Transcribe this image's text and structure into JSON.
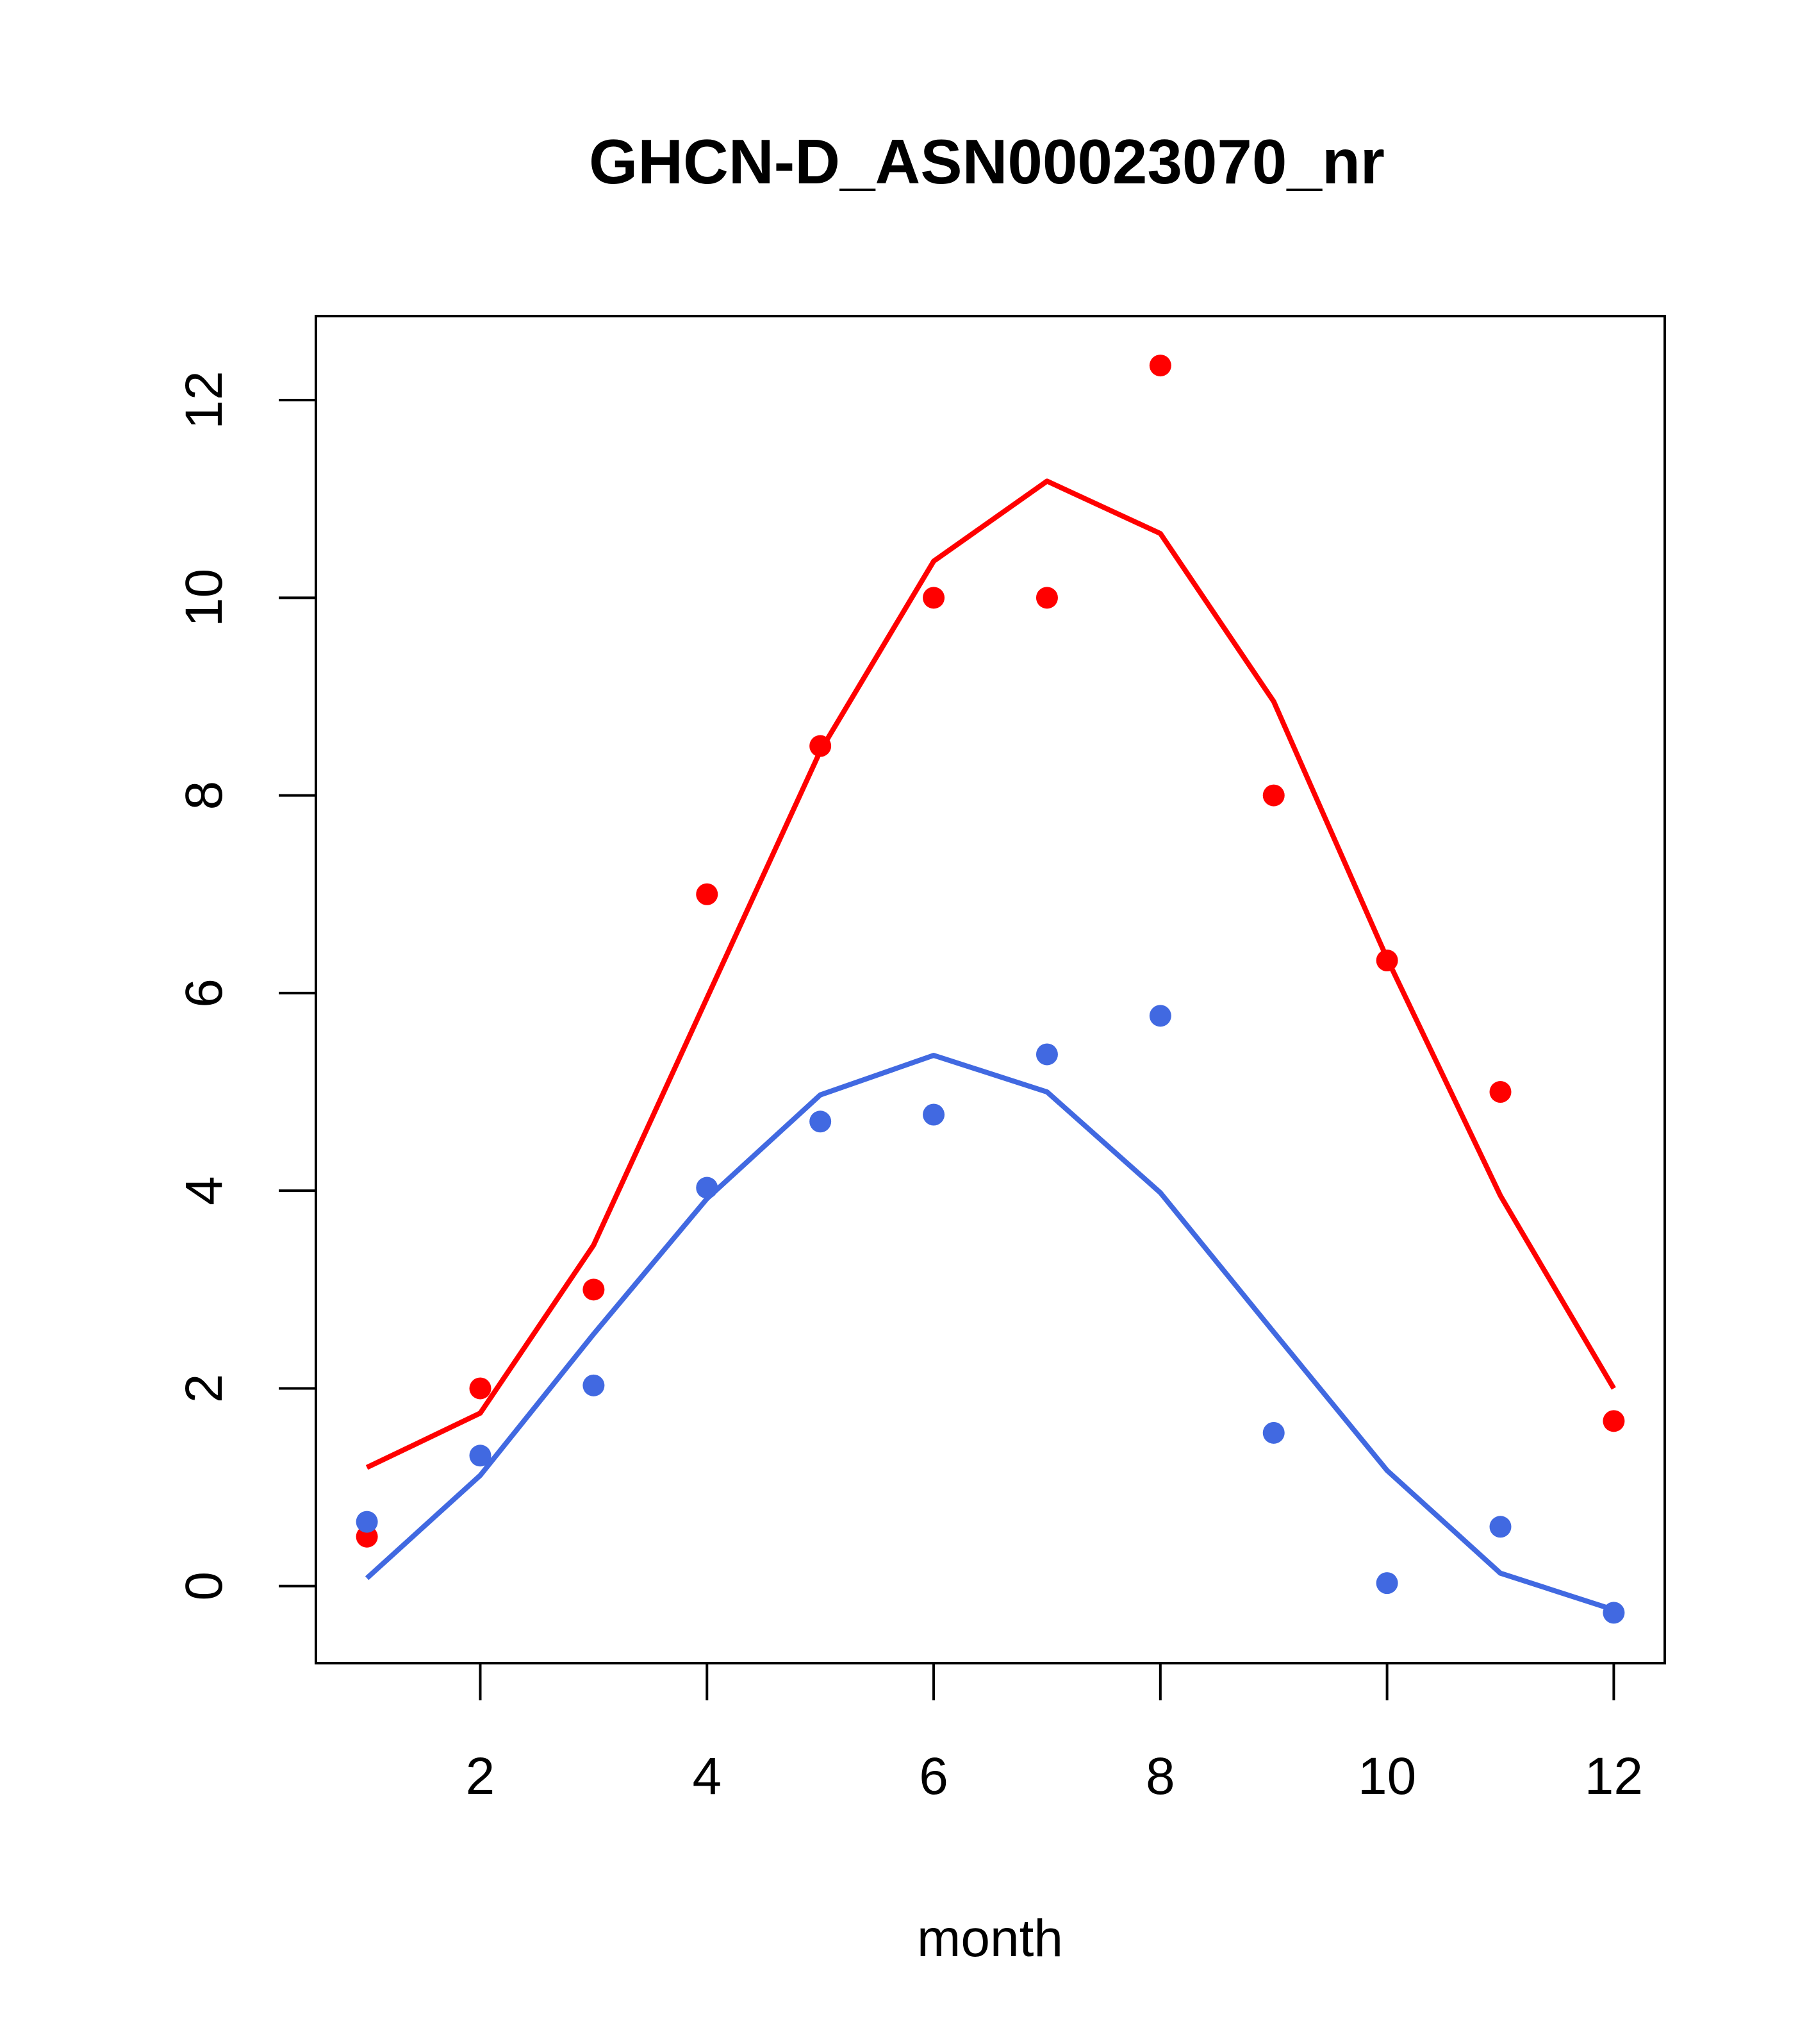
{
  "chart_data": {
    "type": "line",
    "title": "GHCN-D_ASN00023070_nr",
    "xlabel": "month",
    "ylabel": "",
    "xlim": [
      0.55,
      12.45
    ],
    "ylim": [
      -0.78,
      12.85
    ],
    "xticks": [
      2,
      4,
      6,
      8,
      10,
      12
    ],
    "xtick_labels": [
      "2",
      "4",
      "6",
      "8",
      "10",
      "12"
    ],
    "yticks": [
      0,
      2,
      4,
      6,
      8,
      10,
      12
    ],
    "ytick_labels": [
      "0",
      "2",
      "4",
      "6",
      "8",
      "10",
      "12"
    ],
    "grid": false,
    "legend": "none",
    "x": [
      1,
      2,
      3,
      4,
      5,
      6,
      7,
      8,
      9,
      10,
      11,
      12
    ],
    "series": [
      {
        "color": "#ff0000",
        "points": [
          0.5,
          2.0,
          3.0,
          7.0,
          8.5,
          10.0,
          10.0,
          12.35,
          8.0,
          6.33,
          5.0,
          1.67
        ],
        "line": [
          1.2,
          1.75,
          3.45,
          5.95,
          8.45,
          10.37,
          11.18,
          10.65,
          8.95,
          6.35,
          3.95,
          2.0
        ]
      },
      {
        "color": "#4169e1",
        "points": [
          0.65,
          1.32,
          2.03,
          4.03,
          4.7,
          4.77,
          5.38,
          5.77,
          1.55,
          0.03,
          0.6,
          -0.27
        ],
        "line": [
          0.08,
          1.12,
          2.55,
          3.92,
          4.97,
          5.37,
          5.0,
          3.98,
          2.57,
          1.17,
          0.13,
          -0.24
        ]
      }
    ]
  }
}
